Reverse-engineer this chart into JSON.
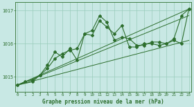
{
  "title": "Graphe pression niveau de la mer (hPa)",
  "background_color": "#c8e8e4",
  "grid_color": "#99ccbb",
  "line_color": "#2d6e2d",
  "xlim": [
    -0.3,
    23.3
  ],
  "ylim": [
    1014.55,
    1017.25
  ],
  "yticks": [
    1015,
    1016,
    1017
  ],
  "xticks": [
    0,
    1,
    2,
    3,
    4,
    5,
    6,
    7,
    8,
    9,
    10,
    11,
    12,
    13,
    14,
    15,
    16,
    17,
    18,
    19,
    20,
    21,
    22,
    23
  ],
  "series_main": {
    "x": [
      0,
      1,
      2,
      3,
      4,
      5,
      6,
      7,
      8,
      9,
      10,
      11,
      12,
      13,
      14,
      15,
      16,
      17,
      18,
      19,
      20,
      21,
      22,
      23
    ],
    "y": [
      1014.75,
      1014.85,
      1014.9,
      1015.05,
      1015.25,
      1015.55,
      1015.7,
      1015.8,
      1015.85,
      1016.3,
      1016.4,
      1016.85,
      1016.65,
      1016.1,
      1016.2,
      1016.15,
      1015.95,
      1015.95,
      1016.05,
      1016.05,
      1016.0,
      1016.15,
      1016.85,
      1017.05
    ]
  },
  "series_zigzag": {
    "x": [
      0,
      2,
      3,
      4,
      5,
      6,
      7,
      8,
      9,
      10,
      11,
      12,
      13,
      14,
      15,
      16,
      17,
      18,
      19,
      20,
      21,
      22,
      23
    ],
    "y": [
      1014.75,
      1014.85,
      1015.05,
      1015.35,
      1015.75,
      1015.6,
      1015.85,
      1015.5,
      1016.3,
      1016.25,
      1016.7,
      1016.5,
      1016.3,
      1016.55,
      1015.9,
      1015.9,
      1016.0,
      1016.0,
      1015.95,
      1016.0,
      1016.1,
      1016.0,
      1017.05
    ]
  },
  "series_straight1": {
    "x": [
      0,
      23
    ],
    "y": [
      1014.75,
      1016.85
    ]
  },
  "series_straight2": {
    "x": [
      0,
      23
    ],
    "y": [
      1014.75,
      1017.05
    ]
  },
  "series_straight3": {
    "x": [
      0,
      23
    ],
    "y": [
      1014.75,
      1016.1
    ]
  }
}
